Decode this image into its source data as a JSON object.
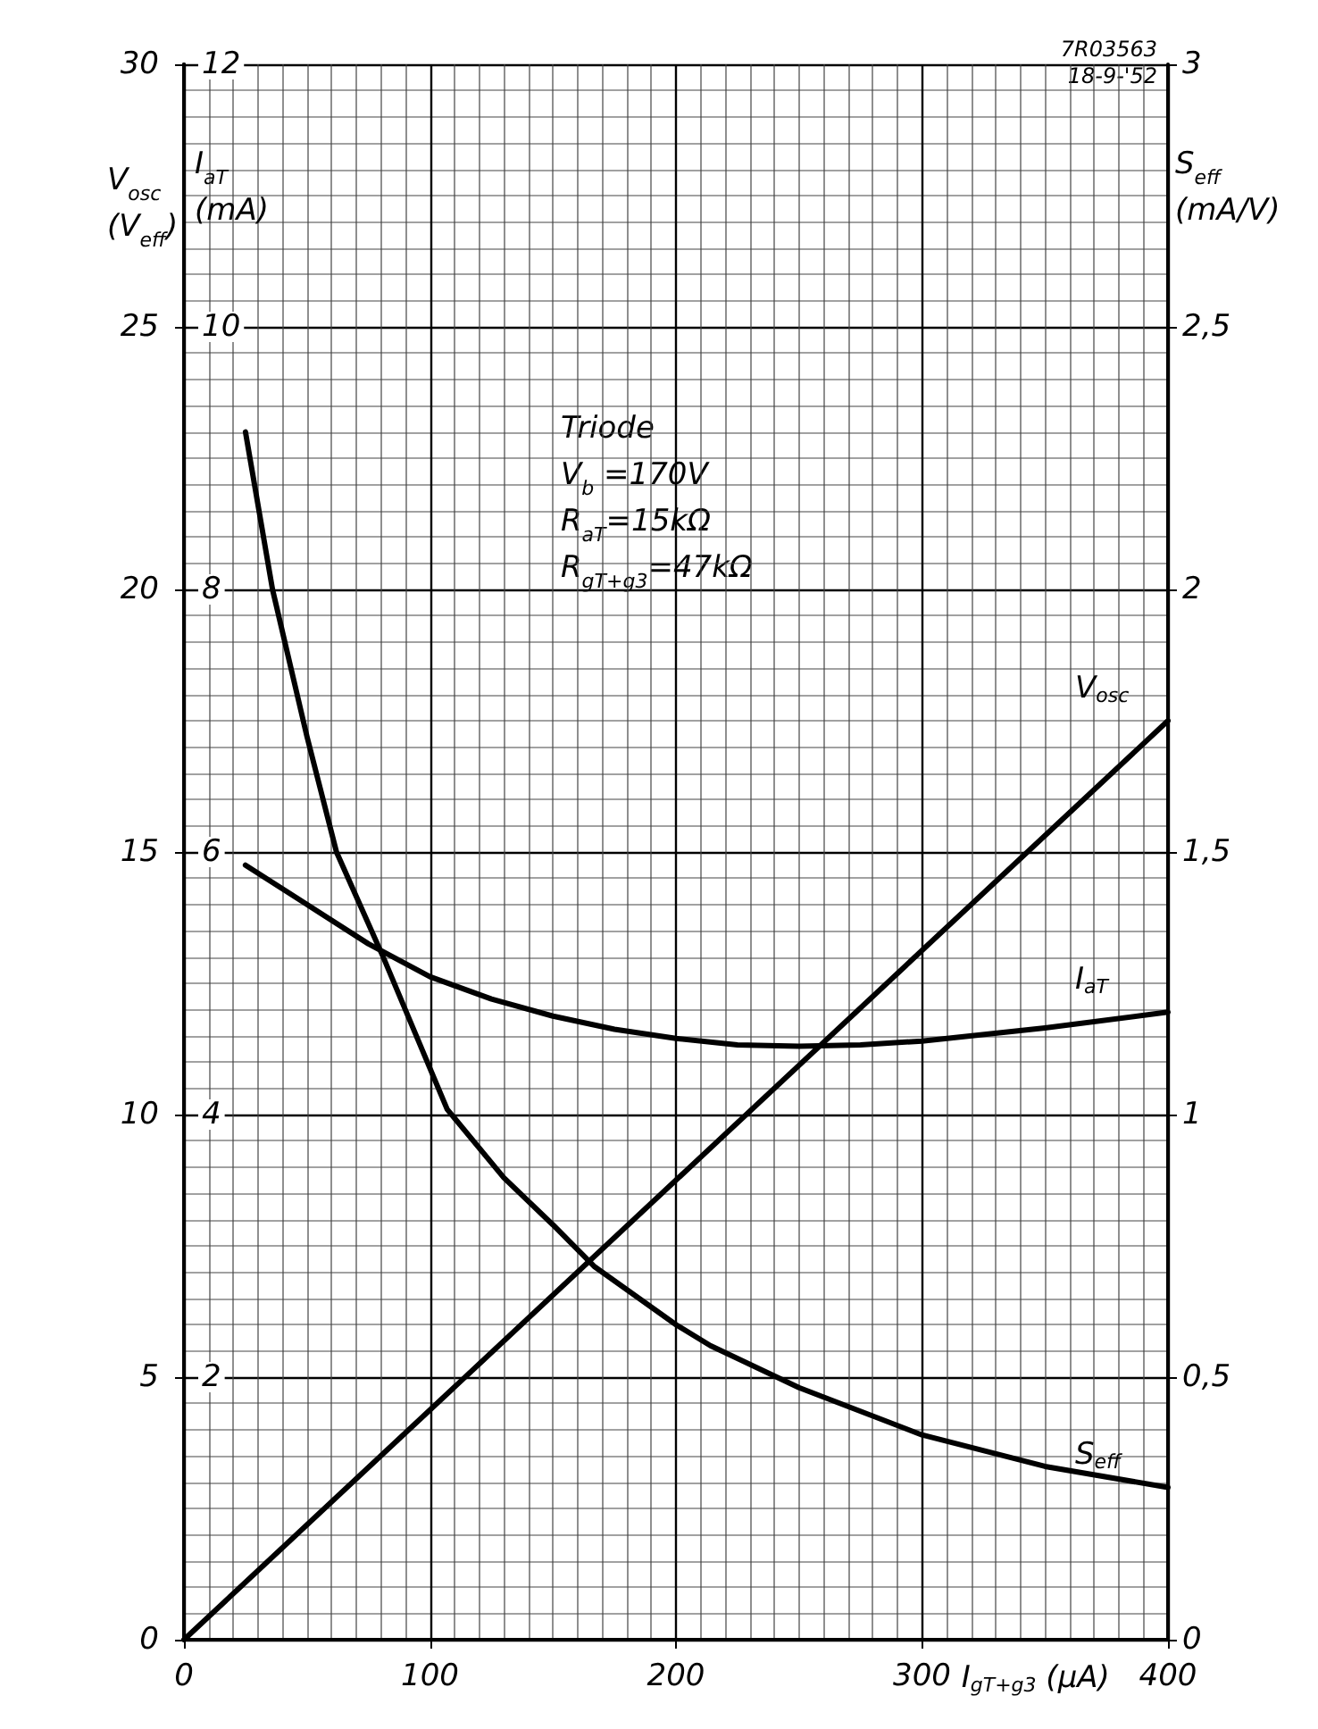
{
  "chart_data": {
    "type": "line",
    "xlabel": "I$_{gT+g3}$ (μA)",
    "ylabel": "V$_{osc}$\n(V$_{eff}$)",
    "y2label": "I$_{aT}$\n(mA)",
    "y3label": "S$_{eff}$\n(mA/V)",
    "xlim": [
      0,
      400
    ],
    "xticks": [
      0,
      100,
      200,
      300,
      400
    ],
    "ylim": [
      0,
      30
    ],
    "yticks": [
      0,
      5,
      10,
      15,
      20,
      25,
      30
    ],
    "y2lim": [
      0,
      12
    ],
    "y2ticks": [
      2,
      4,
      6,
      8,
      10,
      12
    ],
    "y3lim": [
      0,
      3
    ],
    "y3ticks": [
      0,
      {
        "value": 0.5,
        "label": "0,5"
      },
      1,
      {
        "value": 1.5,
        "label": "1,5"
      },
      2,
      {
        "value": 2.5,
        "label": "2,5"
      },
      3
    ],
    "grid": true,
    "marker": "none",
    "line_style": "solid",
    "series": [
      {
        "name": "V$_{osc}$",
        "color": "#000000",
        "axis": "y",
        "x": [
          0,
          400
        ],
        "values": [
          0,
          17.5
        ]
      },
      {
        "name": "I$_{aT}$",
        "color": "#000000",
        "axis": "y2",
        "x": [
          25,
          50,
          75,
          100,
          125,
          150,
          175,
          200,
          225,
          250,
          275,
          300,
          350,
          400
        ],
        "values": [
          5.9,
          5.6,
          5.3,
          5.05,
          4.88,
          4.75,
          4.65,
          4.58,
          4.53,
          4.52,
          4.53,
          4.56,
          4.66,
          4.78
        ]
      },
      {
        "name": "S$_{eff}$",
        "color": "#000000",
        "axis": "y3",
        "x": [
          25,
          36,
          50,
          62,
          81,
          107,
          130,
          150,
          167,
          200,
          214,
          250,
          300,
          350,
          400
        ],
        "values": [
          2.3,
          2.0,
          1.72,
          1.5,
          1.3,
          1.01,
          0.88,
          0.79,
          0.71,
          0.6,
          0.56,
          0.48,
          0.39,
          0.33,
          0.29
        ]
      }
    ],
    "annotations": [
      "Triode\nV$_{b}$ =170V\nR$_{aT}$=15kΩ\nR$_{gT+g3}$=47kΩ",
      "7R03563\n18-9-'52"
    ]
  }
}
